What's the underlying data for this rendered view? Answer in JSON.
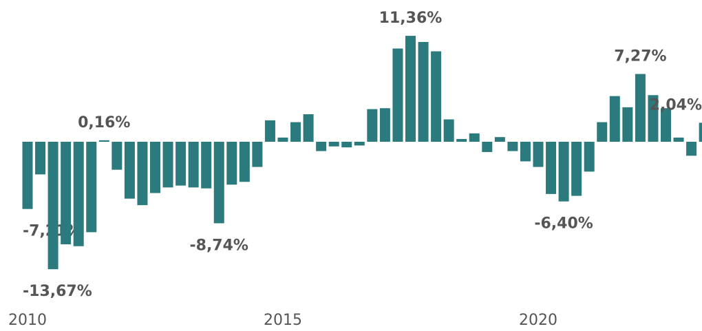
{
  "chart_data": {
    "type": "bar",
    "categories": [
      "2010",
      null,
      null,
      null,
      null,
      null,
      null,
      null,
      null,
      null,
      null,
      null,
      null,
      null,
      null,
      null,
      null,
      null,
      null,
      null,
      "2015",
      null,
      null,
      null,
      null,
      null,
      null,
      null,
      null,
      null,
      null,
      null,
      null,
      null,
      null,
      null,
      null,
      null,
      null,
      null,
      "2020",
      null,
      null,
      null,
      null,
      null,
      null,
      null,
      null,
      null,
      null,
      null,
      null,
      null
    ],
    "values": [
      -7.21,
      -3.5,
      -13.67,
      -11.0,
      -11.2,
      -9.7,
      0.16,
      -3.0,
      -6.1,
      -6.8,
      -5.5,
      -4.9,
      -4.7,
      -4.9,
      -5.0,
      -8.74,
      -4.6,
      -4.3,
      -2.7,
      2.3,
      0.45,
      2.1,
      2.95,
      -1.0,
      -0.5,
      -0.6,
      -0.4,
      3.5,
      3.6,
      10.0,
      11.36,
      10.7,
      9.7,
      2.4,
      0.3,
      0.9,
      -1.1,
      0.5,
      -1.0,
      -2.1,
      -2.7,
      -5.6,
      -6.4,
      -5.8,
      -3.2,
      2.1,
      4.9,
      3.7,
      7.27,
      5.0,
      3.6,
      0.45,
      -1.5,
      2.04
    ],
    "value_labels": [
      "-7,21%",
      null,
      "-13,67%",
      null,
      null,
      null,
      "0,16%",
      null,
      null,
      null,
      null,
      null,
      null,
      null,
      null,
      "-8,74%",
      null,
      null,
      null,
      null,
      null,
      null,
      null,
      null,
      null,
      null,
      null,
      null,
      null,
      null,
      "11,36%",
      null,
      null,
      null,
      null,
      null,
      null,
      null,
      null,
      null,
      null,
      null,
      "-6,40%",
      null,
      null,
      null,
      null,
      null,
      "7,27%",
      null,
      null,
      null,
      null,
      "2,04%"
    ],
    "color": "#2b7a7d",
    "ylim": [
      -14.5,
      12
    ]
  }
}
